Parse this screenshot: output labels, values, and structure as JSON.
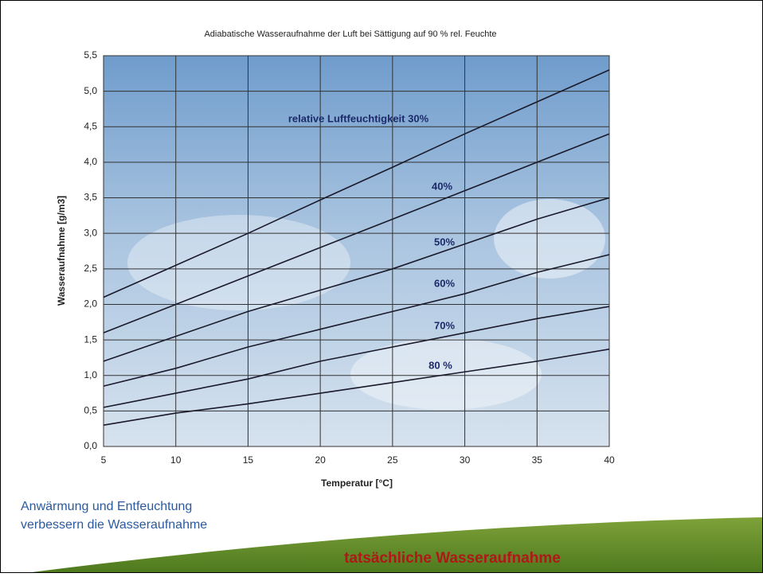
{
  "chart_data": {
    "type": "line",
    "title": "Adiabatische Wasseraufnahme der Luft bei Sättigung auf 90 % rel. Feuchte",
    "x_label": "Temperatur [°C]",
    "y_label": "Wasseraufnahme [g/m3]",
    "x": [
      5,
      10,
      15,
      20,
      25,
      30,
      35,
      40
    ],
    "series": [
      {
        "name": "relative Luftfeuchtigkeit 30%",
        "color": "#1a1a2a",
        "values": [
          2.1,
          2.55,
          3.0,
          3.47,
          3.93,
          4.4,
          4.85,
          5.3
        ]
      },
      {
        "name": "40%",
        "color": "#1a1a2a",
        "values": [
          1.6,
          2.0,
          2.4,
          2.8,
          3.2,
          3.6,
          4.0,
          4.4
        ]
      },
      {
        "name": "50%",
        "color": "#1a1a2a",
        "values": [
          1.2,
          1.55,
          1.9,
          2.2,
          2.5,
          2.85,
          3.2,
          3.5
        ]
      },
      {
        "name": "60%",
        "color": "#1a1a2a",
        "values": [
          0.85,
          1.1,
          1.4,
          1.65,
          1.9,
          2.15,
          2.45,
          2.7
        ]
      },
      {
        "name": "70%",
        "color": "#1a1a2a",
        "values": [
          0.55,
          0.75,
          0.95,
          1.2,
          1.4,
          1.6,
          1.8,
          1.97
        ]
      },
      {
        "name": "80 %",
        "color": "#1a1a2a",
        "values": [
          0.3,
          0.47,
          0.6,
          0.75,
          0.9,
          1.05,
          1.2,
          1.37
        ]
      }
    ],
    "xlim": [
      5,
      40
    ],
    "xticks": [
      5,
      10,
      15,
      20,
      25,
      30,
      35,
      40
    ],
    "ylim": [
      0,
      5.5
    ],
    "yticks": [
      {
        "value": 0,
        "label": "0,0"
      },
      {
        "value": 0.5,
        "label": "0,5"
      },
      {
        "value": 1,
        "label": "1,0"
      },
      {
        "value": 1.5,
        "label": "1,5"
      },
      {
        "value": 2,
        "label": "2,0"
      },
      {
        "value": 2.5,
        "label": "2,5"
      },
      {
        "value": 3,
        "label": "3,0"
      },
      {
        "value": 3.5,
        "label": "3,5"
      },
      {
        "value": 4,
        "label": "4,0"
      },
      {
        "value": 4.5,
        "label": "4,5"
      },
      {
        "value": 5,
        "label": "5,0"
      },
      {
        "value": 5.5,
        "label": "5,5"
      }
    ],
    "grid": true
  },
  "slide": {
    "note_lines": [
      "Anwärmung und Entfeuchtung",
      "verbessern die Wasseraufnahme"
    ],
    "footer": "tatsächliche Wasseraufnahme"
  }
}
